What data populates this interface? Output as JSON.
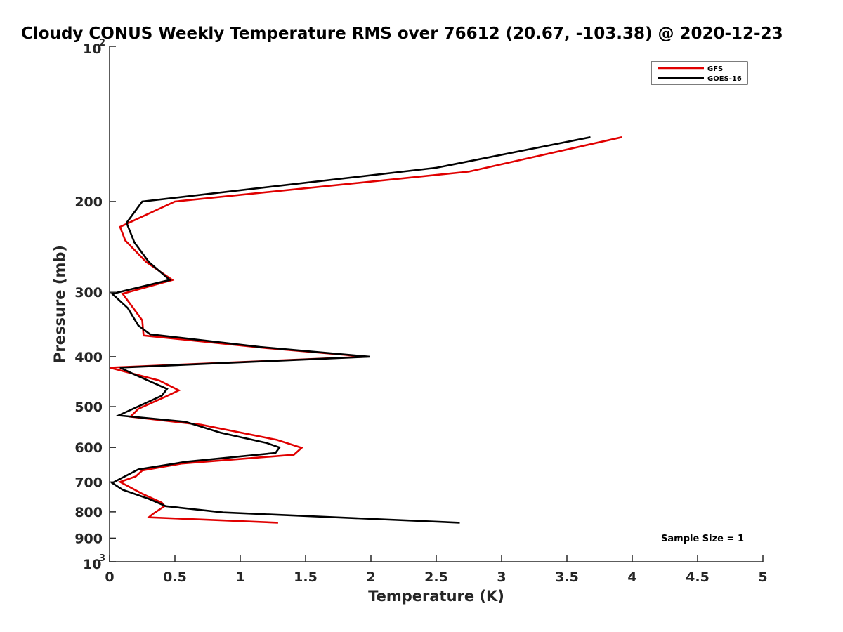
{
  "chart_data": {
    "type": "line",
    "title": "Cloudy CONUS Weekly Temperature RMS over 76612 (20.67, -103.38) @ 2020-12-23",
    "xlabel": "Temperature (K)",
    "ylabel": "Pressure (mb)",
    "xlim": [
      0,
      5
    ],
    "ylim": [
      100,
      1000
    ],
    "y_scale": "log",
    "y_reversed": true,
    "x_ticks": [
      "0",
      "0.5",
      "1",
      "1.5",
      "2",
      "2.5",
      "3",
      "3.5",
      "4",
      "4.5",
      "5"
    ],
    "y_ticks": [
      {
        "value": 100,
        "base": "10",
        "exp": "2"
      },
      {
        "value": 200,
        "label": "200"
      },
      {
        "value": 300,
        "label": "300"
      },
      {
        "value": 400,
        "label": "400"
      },
      {
        "value": 500,
        "label": "500"
      },
      {
        "value": 600,
        "label": "600"
      },
      {
        "value": 700,
        "label": "700"
      },
      {
        "value": 800,
        "label": "800"
      },
      {
        "value": 900,
        "label": "900"
      },
      {
        "value": 1000,
        "base": "10",
        "exp": "3"
      }
    ],
    "grid": false,
    "legend_position": "top-right",
    "annotation": "Sample Size = 1",
    "series": [
      {
        "name": "GFS",
        "color": "#e00000",
        "points": [
          [
            3.92,
            150
          ],
          [
            2.75,
            175
          ],
          [
            0.5,
            200
          ],
          [
            0.08,
            224
          ],
          [
            0.12,
            238
          ],
          [
            0.28,
            262
          ],
          [
            0.48,
            284
          ],
          [
            0.1,
            302
          ],
          [
            0.25,
            340
          ],
          [
            0.26,
            364
          ],
          [
            1.2,
            385
          ],
          [
            1.97,
            400
          ],
          [
            0.0,
            420
          ],
          [
            0.38,
            445
          ],
          [
            0.53,
            465
          ],
          [
            0.43,
            478
          ],
          [
            0.22,
            505
          ],
          [
            0.16,
            523
          ],
          [
            0.7,
            542
          ],
          [
            1.28,
            580
          ],
          [
            1.47,
            601
          ],
          [
            1.41,
            620
          ],
          [
            0.55,
            645
          ],
          [
            0.25,
            665
          ],
          [
            0.2,
            683
          ],
          [
            0.08,
            700
          ],
          [
            0.25,
            738
          ],
          [
            0.4,
            768
          ],
          [
            0.42,
            780
          ],
          [
            0.33,
            808
          ],
          [
            0.3,
            820
          ],
          [
            1.29,
            840
          ]
        ]
      },
      {
        "name": "GOES-16",
        "color": "#000000",
        "points": [
          [
            3.68,
            150
          ],
          [
            2.5,
            172
          ],
          [
            0.25,
            200
          ],
          [
            0.13,
            220
          ],
          [
            0.19,
            240
          ],
          [
            0.3,
            262
          ],
          [
            0.46,
            284
          ],
          [
            0.02,
            302
          ],
          [
            0.14,
            322
          ],
          [
            0.22,
            348
          ],
          [
            0.31,
            362
          ],
          [
            1.15,
            383
          ],
          [
            1.99,
            400
          ],
          [
            0.08,
            420
          ],
          [
            0.18,
            432
          ],
          [
            0.44,
            462
          ],
          [
            0.4,
            476
          ],
          [
            0.07,
            520
          ],
          [
            0.58,
            535
          ],
          [
            0.85,
            562
          ],
          [
            1.2,
            588
          ],
          [
            1.3,
            600
          ],
          [
            1.27,
            615
          ],
          [
            0.58,
            640
          ],
          [
            0.22,
            662
          ],
          [
            0.02,
            703
          ],
          [
            0.1,
            725
          ],
          [
            0.3,
            755
          ],
          [
            0.43,
            780
          ],
          [
            0.87,
            802
          ],
          [
            2.68,
            840
          ]
        ]
      }
    ]
  }
}
